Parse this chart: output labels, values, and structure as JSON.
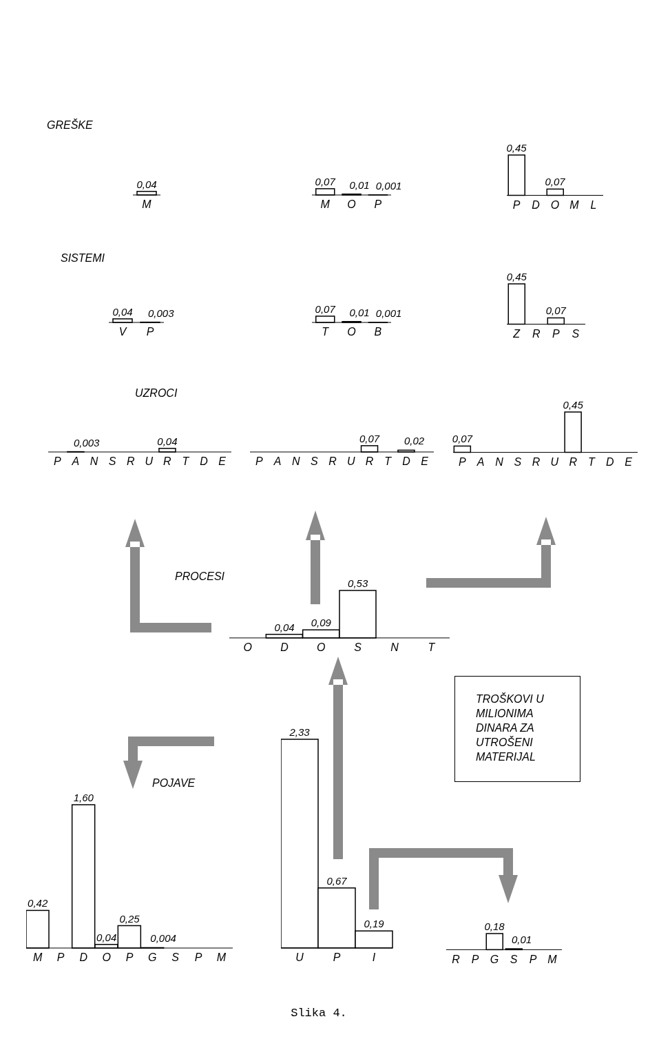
{
  "chart_data": [
    {
      "type": "bar",
      "title": "GREŠKE",
      "categories": [
        "M"
      ],
      "values": [
        0.04
      ],
      "value_labels": [
        "0,04"
      ],
      "color": "#000000"
    },
    {
      "type": "bar",
      "categories": [
        "M",
        "O",
        "P"
      ],
      "values": [
        0.07,
        0.01,
        0.001
      ],
      "value_labels": [
        "0,07",
        "0,01",
        "0,001"
      ],
      "color": "#000000"
    },
    {
      "type": "bar",
      "categories": [
        "P",
        "D",
        "O",
        "M",
        "L"
      ],
      "values": [
        0.45,
        null,
        0.07,
        null,
        null
      ],
      "value_labels": [
        "0,45",
        null,
        "0,07",
        null,
        null
      ],
      "color": "#000000"
    },
    {
      "type": "bar",
      "title": "SISTEMI",
      "categories": [
        "V",
        "P"
      ],
      "values": [
        0.04,
        0.003
      ],
      "value_labels": [
        "0,04",
        "0,003"
      ],
      "color": "#000000"
    },
    {
      "type": "bar",
      "categories": [
        "T",
        "O",
        "B"
      ],
      "values": [
        0.07,
        0.01,
        0.001
      ],
      "value_labels": [
        "0,07",
        "0,01",
        "0,001"
      ],
      "color": "#000000"
    },
    {
      "type": "bar",
      "categories": [
        "Z",
        "R",
        "P",
        "S"
      ],
      "values": [
        0.45,
        null,
        0.07,
        null
      ],
      "value_labels": [
        "0,45",
        null,
        "0,07",
        null
      ],
      "color": "#000000"
    },
    {
      "type": "bar",
      "title": "UZROCI",
      "categories": [
        "P",
        "A",
        "N",
        "S",
        "R",
        "U",
        "R",
        "T",
        "D",
        "E"
      ],
      "values": [
        null,
        0.003,
        null,
        null,
        null,
        null,
        0.04,
        null,
        null,
        null
      ],
      "value_labels": [
        null,
        "0,003",
        null,
        null,
        null,
        null,
        "0,04",
        null,
        null,
        null
      ],
      "color": "#000000"
    },
    {
      "type": "bar",
      "categories": [
        "P",
        "A",
        "N",
        "S",
        "R",
        "U",
        "R",
        "T",
        "D",
        "E"
      ],
      "values": [
        null,
        null,
        null,
        null,
        null,
        null,
        0.07,
        null,
        0.02,
        null
      ],
      "value_labels": [
        null,
        null,
        null,
        null,
        null,
        null,
        "0,07",
        null,
        "0,02",
        null
      ],
      "color": "#000000"
    },
    {
      "type": "bar",
      "categories": [
        "P",
        "A",
        "N",
        "S",
        "R",
        "U",
        "R",
        "T",
        "D",
        "E"
      ],
      "values": [
        0.07,
        null,
        null,
        null,
        null,
        null,
        0.45,
        null,
        null,
        null
      ],
      "value_labels": [
        "0,07",
        null,
        null,
        null,
        null,
        null,
        "0,45",
        null,
        null,
        null
      ],
      "color": "#000000"
    },
    {
      "type": "bar",
      "title": "PROCESI",
      "categories": [
        "O",
        "D",
        "O",
        "S",
        "N",
        "T"
      ],
      "values": [
        null,
        0.04,
        0.09,
        0.53,
        null,
        null
      ],
      "value_labels": [
        null,
        "0,04",
        "0,09",
        "0,53",
        null,
        null
      ],
      "color": "#000000"
    },
    {
      "type": "bar",
      "title": "POJAVE",
      "categories": [
        "M",
        "P",
        "D",
        "O",
        "P",
        "G",
        "S",
        "P",
        "M"
      ],
      "values": [
        0.42,
        null,
        1.6,
        0.04,
        0.25,
        0.004,
        null,
        null,
        null
      ],
      "value_labels": [
        "0,42",
        null,
        "1,60",
        "0,04",
        "0,25",
        "0,004",
        null,
        null,
        null
      ],
      "color": "#000000"
    },
    {
      "type": "bar",
      "categories": [
        "U",
        "P",
        "I"
      ],
      "values": [
        2.33,
        0.67,
        0.19
      ],
      "value_labels": [
        "2,33",
        "0,67",
        "0,19"
      ],
      "color": "#000000"
    },
    {
      "type": "bar",
      "categories": [
        "R",
        "P",
        "G",
        "S",
        "P",
        "M"
      ],
      "values": [
        null,
        null,
        0.18,
        0.01,
        null,
        null
      ],
      "value_labels": [
        null,
        null,
        "0,18",
        "0,01",
        null,
        null
      ],
      "color": "#000000"
    },
    {
      "type": "other",
      "annotations": [
        "TROŠKOVI U MILIONIMA DINARA ZA UTROŠENI MATERIJAL"
      ]
    },
    {
      "type": "other",
      "annotations": [
        "Slika 4."
      ]
    }
  ]
}
